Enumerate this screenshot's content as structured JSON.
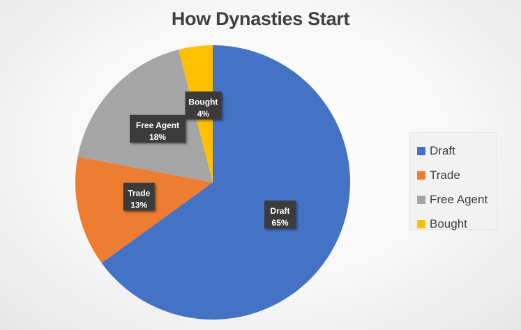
{
  "chart_data": {
    "type": "pie",
    "title": "How Dynasties Start",
    "start_angle_deg": 0,
    "direction": "clockwise",
    "legend_position": "right",
    "slices": [
      {
        "label": "Draft",
        "value": 65,
        "display": "65%",
        "color": "#4472C4"
      },
      {
        "label": "Trade",
        "value": 13,
        "display": "13%",
        "color": "#ED7D31"
      },
      {
        "label": "Free Agent",
        "value": 18,
        "display": "18%",
        "color": "#A5A5A5"
      },
      {
        "label": "Bought",
        "value": 4,
        "display": "4%",
        "color": "#FFC000"
      }
    ]
  }
}
